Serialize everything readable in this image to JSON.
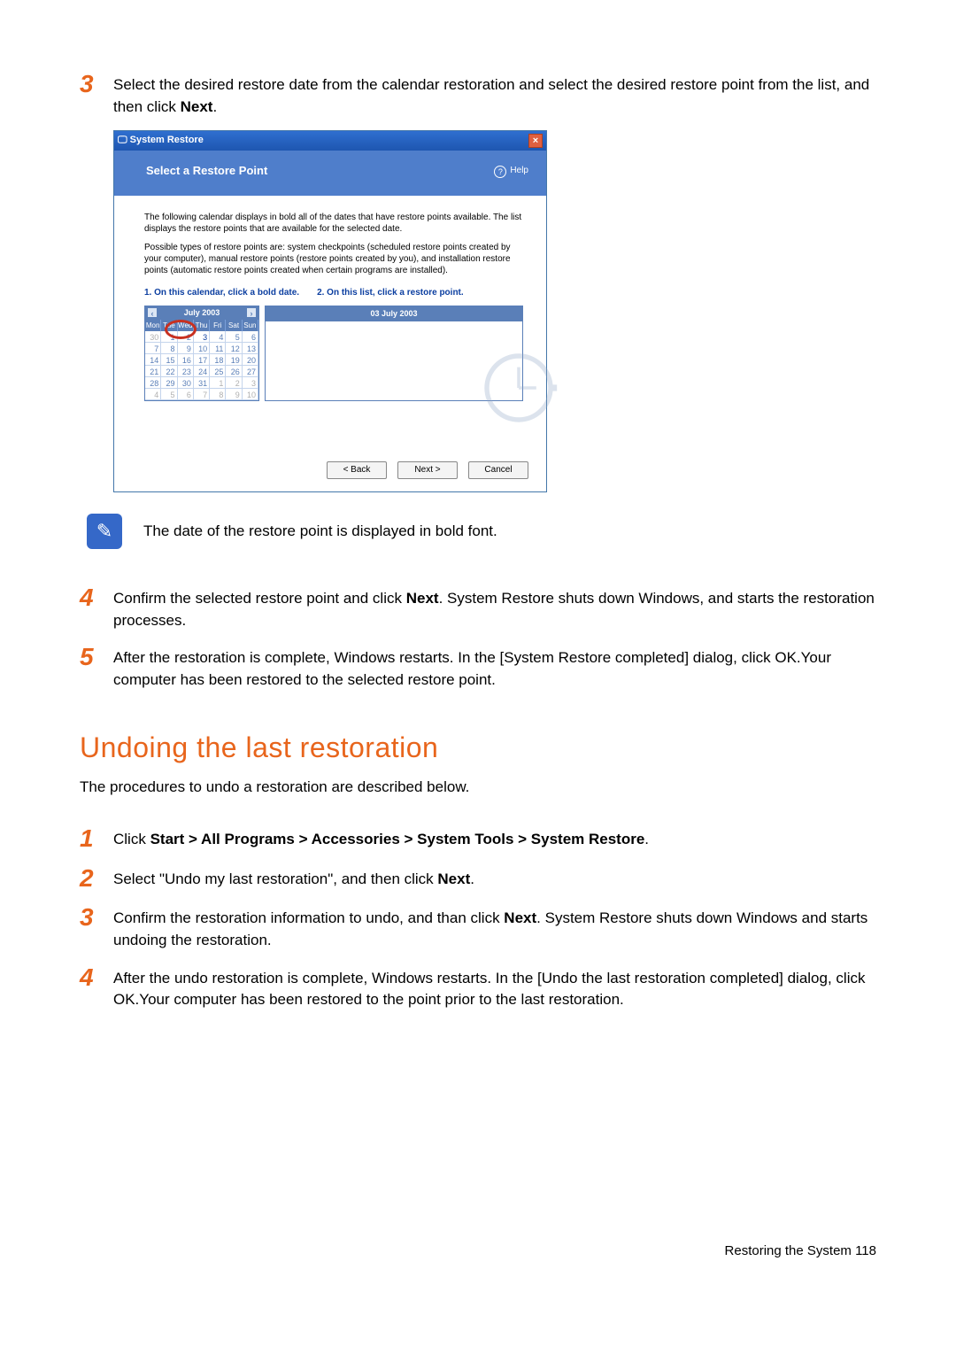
{
  "step3": {
    "num": "3",
    "text_a": "Select the desired restore date from the calendar restoration and select the desired restore point from the list, and then click ",
    "text_b": "Next",
    "text_c": "."
  },
  "shot": {
    "title": "System Restore",
    "banner_title": "Select a Restore Point",
    "help": "Help",
    "p1": "The following calendar displays in bold all of the dates that have restore points available. The list displays the restore points that are available for the selected date.",
    "p2": "Possible types of restore points are: system checkpoints (scheduled restore points created by your computer), manual restore points (restore points created by you), and installation restore points (automatic restore points created when certain programs are installed).",
    "instr1": "1. On this calendar, click a bold date.",
    "instr2": "2. On this list, click a restore point.",
    "cal": {
      "month": "July 2003",
      "days": [
        "Mon",
        "Tue",
        "Wed",
        "Thu",
        "Fri",
        "Sat",
        "Sun"
      ],
      "rows": [
        [
          "30",
          "1",
          "2",
          "3",
          "4",
          "5",
          "6"
        ],
        [
          "7",
          "8",
          "9",
          "10",
          "11",
          "12",
          "13"
        ],
        [
          "14",
          "15",
          "16",
          "17",
          "18",
          "19",
          "20"
        ],
        [
          "21",
          "22",
          "23",
          "24",
          "25",
          "26",
          "27"
        ],
        [
          "28",
          "29",
          "30",
          "31",
          "1",
          "2",
          "3"
        ],
        [
          "4",
          "5",
          "6",
          "7",
          "8",
          "9",
          "10"
        ]
      ],
      "dim_first": [
        0
      ],
      "dim_last": [
        4,
        5,
        6,
        7,
        8,
        9,
        10,
        11,
        12,
        13
      ]
    },
    "rl_head": "03 July 2003",
    "btn_back": "< Back",
    "btn_next": "Next >",
    "btn_cancel": "Cancel"
  },
  "note": "The date of the restore point is displayed in bold font.",
  "step4": {
    "num": "4",
    "a": "Confirm the selected restore point and click ",
    "b": "Next",
    "c": ". System Restore shuts down Windows, and starts the restoration processes."
  },
  "step5": {
    "num": "5",
    "text": "After the restoration is complete, Windows restarts. In the [System Restore completed] dialog, click OK.Your computer has been restored to the selected restore point."
  },
  "section": "Undoing the last restoration",
  "intro": "The procedures to undo a restoration are described below.",
  "u1": {
    "num": "1",
    "a": "Click ",
    "b": "Start > All Programs > Accessories > System Tools > System Restore",
    "c": "."
  },
  "u2": {
    "num": "2",
    "a": "Select \"Undo my last restoration\", and then click ",
    "b": "Next",
    "c": "."
  },
  "u3": {
    "num": "3",
    "a": "Confirm the restoration information to undo, and than click ",
    "b": "Next",
    "c": ". System Restore shuts down Windows and starts undoing the restoration."
  },
  "u4": {
    "num": "4",
    "text": "After the undo restoration is complete, Windows restarts. In the [Undo the last restoration completed] dialog, click OK.Your computer has been restored to the point prior to the last restoration."
  },
  "footer": "Restoring the System    118"
}
